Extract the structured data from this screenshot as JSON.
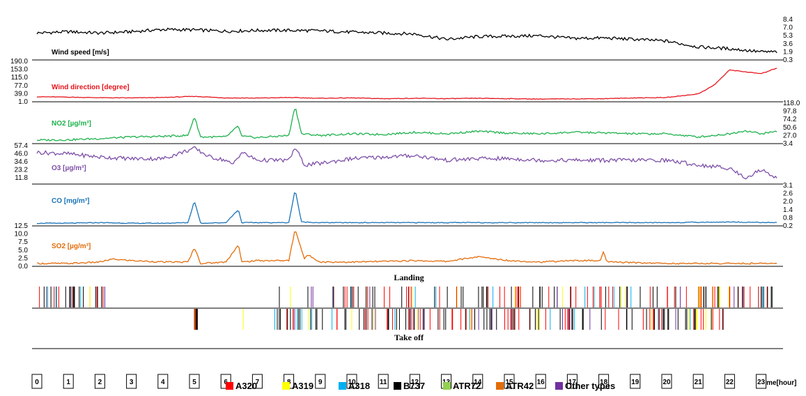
{
  "chart_data": {
    "type": "line",
    "panels": [
      {
        "id": "wind_speed",
        "label": "Wind speed [m/s]",
        "color": "#000000",
        "axis_side": "right",
        "ticks": [
          "8.4",
          "7.0",
          "5.3",
          "3.6",
          "1.9",
          "0.3"
        ],
        "ylim": [
          0.3,
          8.4
        ],
        "x": [
          0,
          1,
          2,
          3,
          4,
          5,
          6,
          7,
          8,
          9,
          10,
          11,
          12,
          13,
          14,
          15,
          16,
          17,
          18,
          19,
          20,
          21,
          22,
          23,
          23.5
        ],
        "values": [
          6.0,
          6.3,
          6.0,
          6.3,
          6.8,
          6.7,
          6.4,
          6.6,
          6.6,
          6.5,
          6.2,
          6.0,
          5.8,
          4.6,
          5.2,
          5.3,
          5.4,
          4.8,
          4.9,
          4.6,
          4.2,
          2.9,
          2.5,
          1.8,
          1.8
        ]
      },
      {
        "id": "wind_direction",
        "label": "Wind direction [degree]",
        "color": "#e6141b",
        "axis_side": "left",
        "ticks": [
          "190.0",
          "153.0",
          "115.0",
          "77.0",
          "39.0",
          "1.0"
        ],
        "ylim": [
          1.0,
          190.0
        ],
        "x": [
          0,
          1,
          2,
          3,
          4,
          5,
          6,
          7,
          8,
          9,
          10,
          11,
          12,
          13,
          14,
          15,
          16,
          17,
          18,
          19,
          20,
          21,
          21.5,
          22,
          22.5,
          23,
          23.5
        ],
        "values": [
          20,
          18,
          15,
          14,
          16,
          22,
          14,
          13,
          16,
          12,
          14,
          10,
          12,
          10,
          12,
          10,
          8,
          9,
          10,
          14,
          16,
          35,
          80,
          160,
          150,
          140,
          170
        ]
      },
      {
        "id": "no2",
        "label": "NO2 [µg/m³]",
        "color": "#1db14c",
        "axis_side": "right",
        "ticks": [
          "118.0",
          "97.8",
          "74.2",
          "50.6",
          "27.0",
          "3.4"
        ],
        "ylim": [
          3.4,
          118.0
        ],
        "x": [
          0,
          1,
          2,
          3,
          4,
          4.8,
          5,
          5.2,
          6,
          6.4,
          6.5,
          7,
          8,
          8.2,
          8.4,
          9,
          10,
          11,
          12,
          13,
          14,
          15,
          16,
          17,
          18,
          19,
          20,
          21,
          22,
          22.5,
          23,
          23.5
        ],
        "values": [
          10,
          11,
          15,
          20,
          22,
          25,
          85,
          20,
          20,
          55,
          22,
          18,
          25,
          118,
          30,
          25,
          30,
          28,
          35,
          30,
          38,
          32,
          30,
          35,
          33,
          30,
          30,
          20,
          30,
          40,
          30,
          38
        ]
      },
      {
        "id": "o3",
        "label": "O3 [µg/m³]",
        "color": "#7d4fa8",
        "axis_side": "left",
        "ticks": [
          "57.4",
          "46.0",
          "34.6",
          "23.2",
          "11.8"
        ],
        "ylim": [
          11.8,
          57.4
        ],
        "x": [
          0,
          1,
          2,
          3,
          4,
          5,
          5.5,
          6,
          6.2,
          6.5,
          7,
          8,
          8.2,
          8.5,
          9,
          10,
          11,
          12,
          13,
          14,
          15,
          16,
          17,
          18,
          19,
          20,
          21,
          22,
          22.5,
          23,
          23.5
        ],
        "values": [
          50,
          48,
          44,
          42,
          42,
          55,
          44,
          40,
          34,
          50,
          40,
          40,
          56,
          34,
          36,
          42,
          44,
          46,
          40,
          42,
          42,
          40,
          40,
          40,
          40,
          40,
          34,
          30,
          18,
          28,
          18
        ]
      },
      {
        "id": "co",
        "label": "CO [mg/m³]",
        "color": "#1a73b8",
        "axis_side": "right",
        "ticks": [
          "3.1",
          "2.6",
          "2.0",
          "1.4",
          "0.8",
          "0.2"
        ],
        "ylim": [
          0.2,
          3.1
        ],
        "x": [
          0,
          1,
          2,
          3,
          4,
          4.8,
          5,
          5.2,
          6,
          6.4,
          6.5,
          7,
          8,
          8.2,
          8.4,
          9,
          10,
          12,
          14,
          16,
          18,
          20,
          22,
          23.5
        ],
        "values": [
          0.3,
          0.3,
          0.35,
          0.3,
          0.3,
          0.35,
          2.1,
          0.3,
          0.35,
          1.4,
          0.35,
          0.35,
          0.35,
          3.0,
          0.4,
          0.35,
          0.35,
          0.35,
          0.35,
          0.35,
          0.35,
          0.35,
          0.4,
          0.35
        ]
      },
      {
        "id": "so2",
        "label": "SO2 [µg/m³]",
        "color": "#e36c0a",
        "axis_side": "left",
        "ticks": [
          "12.5",
          "10.0",
          "7.5",
          "5.0",
          "2.5",
          "0.0"
        ],
        "ylim": [
          0.0,
          12.5
        ],
        "x": [
          0,
          1,
          2,
          2.4,
          3,
          4,
          4.8,
          5,
          5.2,
          6,
          6.4,
          6.5,
          7,
          8,
          8.2,
          8.5,
          8.6,
          9,
          10,
          11,
          12,
          13,
          14,
          15,
          16,
          17,
          17.9,
          18,
          18.1,
          19,
          20,
          21,
          22,
          23,
          23.5
        ],
        "values": [
          0.5,
          0.5,
          1.0,
          2.0,
          1.5,
          1.0,
          1.0,
          6.0,
          0.5,
          1.0,
          7.0,
          1.0,
          1.5,
          1.5,
          12.3,
          2.0,
          3.5,
          1.0,
          1.0,
          1.2,
          1.5,
          1.2,
          2.8,
          1.5,
          1.0,
          1.5,
          1.5,
          4.8,
          1.0,
          0.8,
          0.5,
          0.5,
          0.5,
          0.5,
          0.5
        ]
      }
    ],
    "flight_sections": {
      "landing_title": "Landing",
      "takeoff_title": "Take off"
    },
    "x_axis": {
      "ticks": [
        "0",
        "1",
        "2",
        "3",
        "4",
        "5",
        "6",
        "7",
        "8",
        "9",
        "10",
        "11",
        "12",
        "13",
        "14",
        "15",
        "16",
        "17",
        "18",
        "19",
        "20",
        "21",
        "22",
        "23"
      ],
      "label": "time[hour]"
    },
    "legend": [
      {
        "name": "A320",
        "color": "#ff0000"
      },
      {
        "name": "A319",
        "color": "#ffff00"
      },
      {
        "name": "A318",
        "color": "#00b0f0"
      },
      {
        "name": "B737",
        "color": "#000000"
      },
      {
        "name": "ATR72",
        "color": "#92d050"
      },
      {
        "name": "ATR42",
        "color": "#e36c0a"
      },
      {
        "name": "Other types",
        "color": "#7030a0"
      }
    ]
  }
}
